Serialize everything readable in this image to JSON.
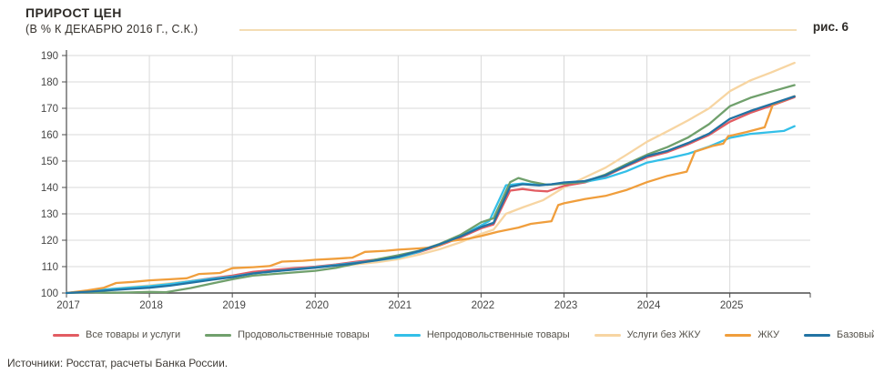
{
  "header": {
    "title": "ПРИРОСТ ЦЕН",
    "subtitle": "(В % К ДЕКАБРЮ 2016 Г., С.К.)",
    "figure_label": "рис. 6"
  },
  "source_text": "Источники: Росстат, расчеты Банка России.",
  "colors": {
    "grid": "#d9d9d9",
    "axis": "#4d4d4d",
    "tick_text": "#454545",
    "deco_rule": "#f4ddb4"
  },
  "chart_data": {
    "type": "line",
    "title": "ПРИРОСТ ЦЕН (В % К ДЕКАБРЮ 2016 Г., С.К.)",
    "xlabel": "",
    "ylabel": "",
    "grid": "on",
    "legend_position": "bottom",
    "ylim": [
      100,
      190
    ],
    "xlim": [
      2017,
      2025.97
    ],
    "yticks": [
      100,
      110,
      120,
      130,
      140,
      150,
      160,
      170,
      180,
      190
    ],
    "xticks": [
      2017,
      2018,
      2019,
      2020,
      2021,
      2022,
      2023,
      2024,
      2025
    ],
    "series": [
      {
        "name": "Услуги без ЖКУ",
        "color": "#f7d5a2",
        "points": [
          [
            2017.0,
            100
          ],
          [
            2017.25,
            100.8
          ],
          [
            2017.5,
            101.5
          ],
          [
            2017.75,
            102.2
          ],
          [
            2018.0,
            102.9
          ],
          [
            2018.25,
            103.7
          ],
          [
            2018.5,
            104.6
          ],
          [
            2018.75,
            105.6
          ],
          [
            2019.0,
            106.6
          ],
          [
            2019.25,
            107.9
          ],
          [
            2019.5,
            108.4
          ],
          [
            2019.75,
            109.2
          ],
          [
            2020.0,
            109.9
          ],
          [
            2020.25,
            110.4
          ],
          [
            2020.5,
            110.9
          ],
          [
            2020.75,
            111.7
          ],
          [
            2021.0,
            112.8
          ],
          [
            2021.25,
            114.5
          ],
          [
            2021.5,
            116.6
          ],
          [
            2021.75,
            119.2
          ],
          [
            2022.0,
            122.4
          ],
          [
            2022.15,
            124
          ],
          [
            2022.3,
            130
          ],
          [
            2022.5,
            132.4
          ],
          [
            2022.75,
            135.2
          ],
          [
            2023.0,
            140
          ],
          [
            2023.25,
            143.8
          ],
          [
            2023.5,
            147.5
          ],
          [
            2023.75,
            152.3
          ],
          [
            2024.0,
            157.3
          ],
          [
            2024.25,
            161.3
          ],
          [
            2024.5,
            165.5
          ],
          [
            2024.75,
            170
          ],
          [
            2025.0,
            176.5
          ],
          [
            2025.25,
            180.6
          ],
          [
            2025.5,
            183.6
          ],
          [
            2025.78,
            187.2
          ]
        ]
      },
      {
        "name": "Все товары и услуги",
        "color": "#e25c62",
        "points": [
          [
            2017.0,
            100
          ],
          [
            2017.25,
            100.6
          ],
          [
            2017.5,
            101.2
          ],
          [
            2017.75,
            101.8
          ],
          [
            2018.0,
            102.4
          ],
          [
            2018.25,
            103.3
          ],
          [
            2018.5,
            104.4
          ],
          [
            2018.75,
            105.6
          ],
          [
            2019.0,
            106.6
          ],
          [
            2019.25,
            108
          ],
          [
            2019.5,
            108.8
          ],
          [
            2019.75,
            109.4
          ],
          [
            2020.0,
            110
          ],
          [
            2020.25,
            110.8
          ],
          [
            2020.5,
            111.9
          ],
          [
            2020.75,
            112.7
          ],
          [
            2021.0,
            113.6
          ],
          [
            2021.25,
            115.5
          ],
          [
            2021.5,
            118
          ],
          [
            2021.75,
            121
          ],
          [
            2022.0,
            124.5
          ],
          [
            2022.15,
            126
          ],
          [
            2022.35,
            138.8
          ],
          [
            2022.5,
            139.4
          ],
          [
            2022.65,
            138.8
          ],
          [
            2022.8,
            138.5
          ],
          [
            2023.0,
            140.6
          ],
          [
            2023.25,
            141.9
          ],
          [
            2023.5,
            144.3
          ],
          [
            2023.75,
            148
          ],
          [
            2024.0,
            151.4
          ],
          [
            2024.25,
            153.4
          ],
          [
            2024.5,
            156.4
          ],
          [
            2024.75,
            159.9
          ],
          [
            2025.0,
            164.9
          ],
          [
            2025.25,
            168.3
          ],
          [
            2025.5,
            171
          ],
          [
            2025.78,
            174.2
          ]
        ]
      },
      {
        "name": "Непродовольственные товары",
        "color": "#33bfe8",
        "points": [
          [
            2017.0,
            100
          ],
          [
            2017.25,
            100.7
          ],
          [
            2017.5,
            101.4
          ],
          [
            2017.75,
            102
          ],
          [
            2018.0,
            102.6
          ],
          [
            2018.25,
            103.4
          ],
          [
            2018.5,
            104.4
          ],
          [
            2018.75,
            105.4
          ],
          [
            2019.0,
            106.2
          ],
          [
            2019.25,
            107.4
          ],
          [
            2019.5,
            108.2
          ],
          [
            2019.75,
            109
          ],
          [
            2020.0,
            109.8
          ],
          [
            2020.25,
            110.6
          ],
          [
            2020.5,
            111.5
          ],
          [
            2020.75,
            112.4
          ],
          [
            2021.0,
            113.4
          ],
          [
            2021.25,
            115.6
          ],
          [
            2021.5,
            118.6
          ],
          [
            2021.75,
            121.6
          ],
          [
            2022.0,
            125.6
          ],
          [
            2022.1,
            127.3
          ],
          [
            2022.3,
            140.8
          ],
          [
            2022.5,
            141.5
          ],
          [
            2022.7,
            141
          ],
          [
            2022.85,
            141.2
          ],
          [
            2023.0,
            141.6
          ],
          [
            2023.25,
            142.1
          ],
          [
            2023.5,
            143.6
          ],
          [
            2023.75,
            146.1
          ],
          [
            2024.0,
            149.4
          ],
          [
            2024.25,
            151
          ],
          [
            2024.5,
            152.8
          ],
          [
            2024.75,
            155.5
          ],
          [
            2025.0,
            158.8
          ],
          [
            2025.25,
            160.3
          ],
          [
            2025.5,
            161
          ],
          [
            2025.65,
            161.4
          ],
          [
            2025.78,
            163.2
          ]
        ]
      },
      {
        "name": "Продовольственные товары",
        "color": "#70a06c",
        "points": [
          [
            2017.0,
            100
          ],
          [
            2017.25,
            100.3
          ],
          [
            2017.5,
            100.1
          ],
          [
            2017.75,
            100.2
          ],
          [
            2018.0,
            100.4
          ],
          [
            2018.2,
            100.3
          ],
          [
            2018.5,
            101.9
          ],
          [
            2018.75,
            103.6
          ],
          [
            2019.0,
            105.2
          ],
          [
            2019.25,
            106.6
          ],
          [
            2019.5,
            107.2
          ],
          [
            2019.75,
            107.8
          ],
          [
            2020.0,
            108.4
          ],
          [
            2020.25,
            109.5
          ],
          [
            2020.5,
            111.2
          ],
          [
            2020.75,
            112.8
          ],
          [
            2021.0,
            114.3
          ],
          [
            2021.25,
            116
          ],
          [
            2021.5,
            118.6
          ],
          [
            2021.75,
            122
          ],
          [
            2022.0,
            126.8
          ],
          [
            2022.15,
            128.3
          ],
          [
            2022.35,
            142
          ],
          [
            2022.45,
            143.6
          ],
          [
            2022.6,
            142.2
          ],
          [
            2022.8,
            141
          ],
          [
            2023.0,
            141.4
          ],
          [
            2023.25,
            142.2
          ],
          [
            2023.5,
            144.9
          ],
          [
            2023.75,
            148.8
          ],
          [
            2024.0,
            152.4
          ],
          [
            2024.25,
            155.3
          ],
          [
            2024.5,
            159
          ],
          [
            2024.75,
            164
          ],
          [
            2025.0,
            170.8
          ],
          [
            2025.25,
            174
          ],
          [
            2025.5,
            176.3
          ],
          [
            2025.78,
            178.8
          ]
        ]
      },
      {
        "name": "ЖКУ",
        "color": "#f09e3c",
        "points": [
          [
            2017.0,
            100
          ],
          [
            2017.25,
            101
          ],
          [
            2017.45,
            102
          ],
          [
            2017.6,
            103.8
          ],
          [
            2017.8,
            104.2
          ],
          [
            2018.0,
            104.8
          ],
          [
            2018.25,
            105.2
          ],
          [
            2018.45,
            105.6
          ],
          [
            2018.6,
            107.2
          ],
          [
            2018.85,
            107.6
          ],
          [
            2019.0,
            109.4
          ],
          [
            2019.25,
            109.8
          ],
          [
            2019.45,
            110.2
          ],
          [
            2019.6,
            111.9
          ],
          [
            2019.85,
            112.2
          ],
          [
            2020.0,
            112.6
          ],
          [
            2020.25,
            113
          ],
          [
            2020.45,
            113.4
          ],
          [
            2020.6,
            115.6
          ],
          [
            2020.85,
            116
          ],
          [
            2021.0,
            116.4
          ],
          [
            2021.25,
            116.9
          ],
          [
            2021.45,
            117.4
          ],
          [
            2021.6,
            119.6
          ],
          [
            2021.85,
            120.6
          ],
          [
            2022.0,
            121.6
          ],
          [
            2022.2,
            123.2
          ],
          [
            2022.45,
            124.8
          ],
          [
            2022.6,
            126.2
          ],
          [
            2022.85,
            127.2
          ],
          [
            2022.93,
            133.3
          ],
          [
            2023.0,
            134
          ],
          [
            2023.25,
            135.6
          ],
          [
            2023.5,
            136.8
          ],
          [
            2023.75,
            139
          ],
          [
            2024.0,
            142
          ],
          [
            2024.25,
            144.4
          ],
          [
            2024.48,
            146
          ],
          [
            2024.58,
            153.6
          ],
          [
            2024.8,
            155.8
          ],
          [
            2024.92,
            156.6
          ],
          [
            2024.98,
            159.4
          ],
          [
            2025.2,
            161
          ],
          [
            2025.42,
            162.8
          ],
          [
            2025.52,
            171.5
          ],
          [
            2025.78,
            174.6
          ]
        ]
      },
      {
        "name": "Базовый ИПЦ",
        "color": "#2273a3",
        "points": [
          [
            2017.0,
            100
          ],
          [
            2017.25,
            100.5
          ],
          [
            2017.5,
            101
          ],
          [
            2017.75,
            101.5
          ],
          [
            2018.0,
            102
          ],
          [
            2018.25,
            102.8
          ],
          [
            2018.5,
            103.9
          ],
          [
            2018.75,
            105
          ],
          [
            2019.0,
            106
          ],
          [
            2019.25,
            107.4
          ],
          [
            2019.5,
            108.2
          ],
          [
            2019.75,
            108.9
          ],
          [
            2020.0,
            109.6
          ],
          [
            2020.25,
            110.4
          ],
          [
            2020.5,
            111.3
          ],
          [
            2020.75,
            112.4
          ],
          [
            2021.0,
            113.8
          ],
          [
            2021.25,
            115.9
          ],
          [
            2021.5,
            118.4
          ],
          [
            2021.75,
            121.4
          ],
          [
            2022.0,
            125
          ],
          [
            2022.15,
            126.6
          ],
          [
            2022.35,
            140.3
          ],
          [
            2022.5,
            141.2
          ],
          [
            2022.7,
            140.8
          ],
          [
            2022.85,
            141.2
          ],
          [
            2023.0,
            141.9
          ],
          [
            2023.25,
            142.4
          ],
          [
            2023.5,
            144.6
          ],
          [
            2023.75,
            148.3
          ],
          [
            2024.0,
            151.9
          ],
          [
            2024.25,
            153.9
          ],
          [
            2024.5,
            156.9
          ],
          [
            2024.75,
            160.4
          ],
          [
            2025.0,
            166
          ],
          [
            2025.25,
            169
          ],
          [
            2025.5,
            171.6
          ],
          [
            2025.78,
            174.5
          ]
        ]
      }
    ],
    "legend_order": [
      "Все товары и услуги",
      "Продовольственные товары",
      "Непродовольственные товары",
      "Услуги без ЖКУ",
      "ЖКУ",
      "Базовый ИПЦ"
    ]
  }
}
